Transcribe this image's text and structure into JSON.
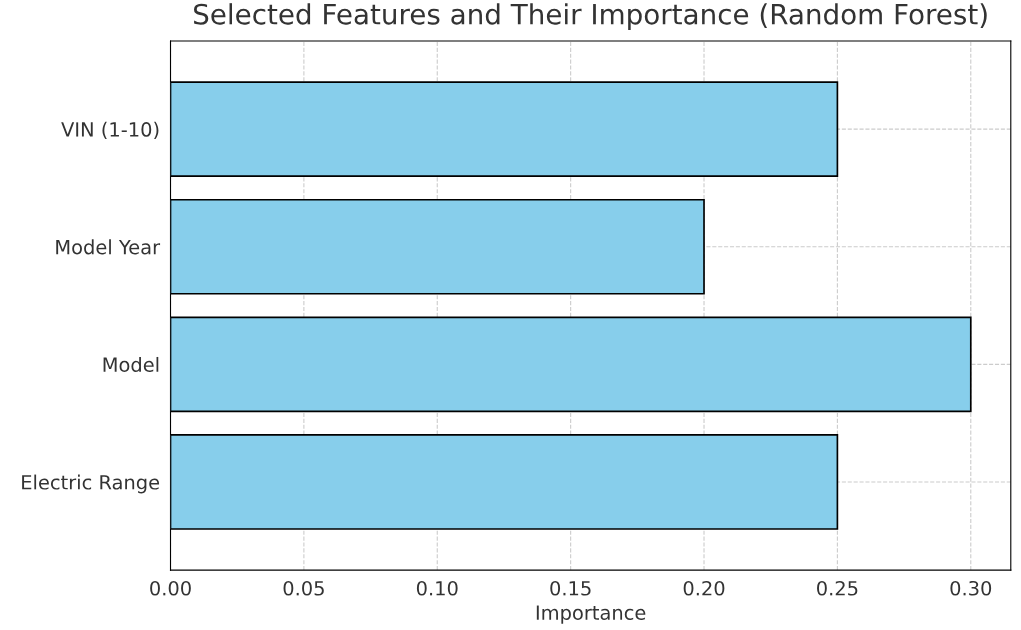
{
  "chart_data": {
    "type": "bar",
    "orientation": "horizontal",
    "title": "Selected Features and Their Importance (Random Forest)",
    "xlabel": "Importance",
    "categories": [
      "VIN (1-10)",
      "Model Year",
      "Model",
      "Electric Range"
    ],
    "values": [
      0.25,
      0.2,
      0.3,
      0.25
    ],
    "color": "#87ceeb",
    "xlim": [
      0,
      0.315
    ],
    "xticks": [
      {
        "value": 0,
        "label": "0.00"
      },
      {
        "value": 0.05,
        "label": "0.05"
      },
      {
        "value": 0.1,
        "label": "0.10"
      },
      {
        "value": 0.15,
        "label": "0.15"
      },
      {
        "value": 0.2,
        "label": "0.20"
      },
      {
        "value": 0.25,
        "label": "0.25"
      },
      {
        "value": 0.3,
        "label": "0.30"
      }
    ],
    "grid": true
  }
}
